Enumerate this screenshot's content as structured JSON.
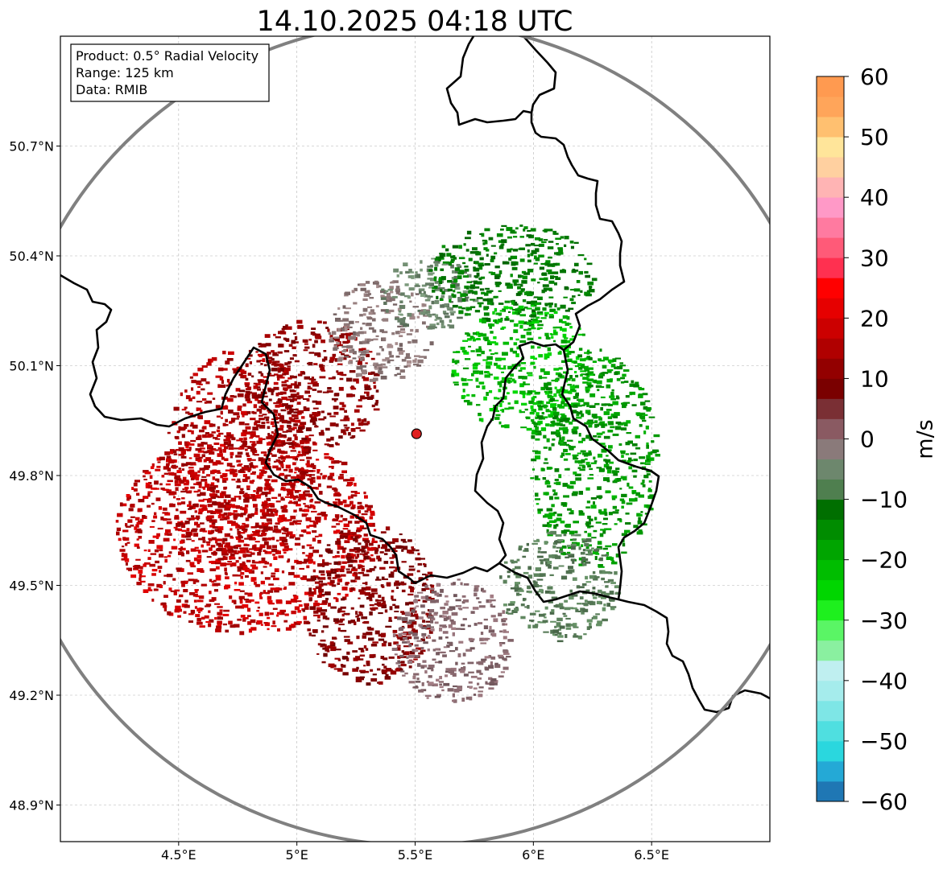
{
  "chart_data": {
    "type": "heatmap",
    "title": "14.10.2025 04:18 UTC",
    "xlabel": "",
    "ylabel": "",
    "xlim": [
      4.0,
      7.0
    ],
    "ylim": [
      48.8,
      51.0
    ],
    "x_ticks": [
      4.5,
      5.0,
      5.5,
      6.0,
      6.5
    ],
    "x_tick_labels": [
      "4.5°E",
      "5°E",
      "5.5°E",
      "6°E",
      "6.5°E"
    ],
    "y_ticks": [
      48.9,
      49.2,
      49.5,
      49.8,
      50.1,
      50.4,
      50.7
    ],
    "y_tick_labels": [
      "48.9°N",
      "49.2°N",
      "49.5°N",
      "49.8°N",
      "50.1°N",
      "50.4°N",
      "50.7°N"
    ],
    "grid": true,
    "info_box": {
      "lines": [
        "Product: 0.5° Radial Velocity",
        "Range: 125 km",
        "Data: RMIB"
      ],
      "position": "top-left"
    },
    "radar_site": {
      "lon": 5.506,
      "lat": 49.914,
      "color": "#e02020"
    },
    "range_ring_km": 125,
    "colorbar": {
      "label": "m/s",
      "min": -60,
      "max": 60,
      "ticks": [
        60,
        50,
        40,
        30,
        20,
        10,
        0,
        -10,
        -20,
        -30,
        -40,
        -50,
        -60
      ],
      "tick_labels": [
        "60",
        "50",
        "40",
        "30",
        "20",
        "10",
        "0",
        "−10",
        "−20",
        "−30",
        "−40",
        "−50",
        "−60"
      ],
      "colors": [
        "#1f77b4",
        "#24a9d6",
        "#2ad7de",
        "#4fdfe0",
        "#7ee6e6",
        "#a5ecec",
        "#bfeff0",
        "#8af0a0",
        "#5af565",
        "#1ef01e",
        "#00d600",
        "#00bd00",
        "#00a500",
        "#008c00",
        "#006f00",
        "#4f7f4f",
        "#6d876d",
        "#8a7a7a",
        "#8a5a62",
        "#7a2f34",
        "#7a0000",
        "#930000",
        "#b00000",
        "#cc0000",
        "#e60000",
        "#ff0000",
        "#ff3050",
        "#ff5a78",
        "#ff7aa0",
        "#ff99c7",
        "#ffb4b4",
        "#ffd0a0",
        "#ffe59a",
        "#ffc070",
        "#ffa55a",
        "#ff9a50"
      ]
    },
    "velocity_regions": [
      {
        "name": "outbound-southwest",
        "lon": 4.78,
        "lat": 49.65,
        "r_lon": 0.55,
        "r_lat": 0.28,
        "value": 24,
        "color": "#c00000"
      },
      {
        "name": "outbound-west",
        "lon": 4.75,
        "lat": 49.85,
        "r_lon": 0.32,
        "r_lat": 0.3,
        "value": 22,
        "color": "#b00000"
      },
      {
        "name": "outbound-northwest",
        "lon": 5.05,
        "lat": 50.05,
        "r_lon": 0.3,
        "r_lat": 0.18,
        "value": 16,
        "color": "#8f0000"
      },
      {
        "name": "outbound-south",
        "lon": 5.3,
        "lat": 49.45,
        "r_lon": 0.28,
        "r_lat": 0.22,
        "value": 13,
        "color": "#850000"
      },
      {
        "name": "near-zero-south",
        "lon": 5.65,
        "lat": 49.35,
        "r_lon": 0.25,
        "r_lat": 0.17,
        "value": 4,
        "color": "#8a6a70"
      },
      {
        "name": "near-zero-northwest",
        "lon": 5.35,
        "lat": 50.2,
        "r_lon": 0.22,
        "r_lat": 0.14,
        "value": 2,
        "color": "#907a7a"
      },
      {
        "name": "near-zero-north",
        "lon": 5.55,
        "lat": 50.3,
        "r_lon": 0.2,
        "r_lat": 0.1,
        "value": -3,
        "color": "#6d876d"
      },
      {
        "name": "inbound-north",
        "lon": 5.9,
        "lat": 50.35,
        "r_lon": 0.35,
        "r_lat": 0.14,
        "value": -10,
        "color": "#007a00"
      },
      {
        "name": "inbound-northeast",
        "lon": 5.95,
        "lat": 50.1,
        "r_lon": 0.3,
        "r_lat": 0.18,
        "value": -20,
        "color": "#00b800"
      },
      {
        "name": "inbound-east",
        "lon": 6.25,
        "lat": 49.85,
        "r_lon": 0.27,
        "r_lat": 0.3,
        "value": -17,
        "color": "#009a00"
      },
      {
        "name": "inbound-southeast",
        "lon": 6.1,
        "lat": 49.5,
        "r_lon": 0.25,
        "r_lat": 0.15,
        "value": -6,
        "color": "#5a7f5a"
      }
    ]
  }
}
